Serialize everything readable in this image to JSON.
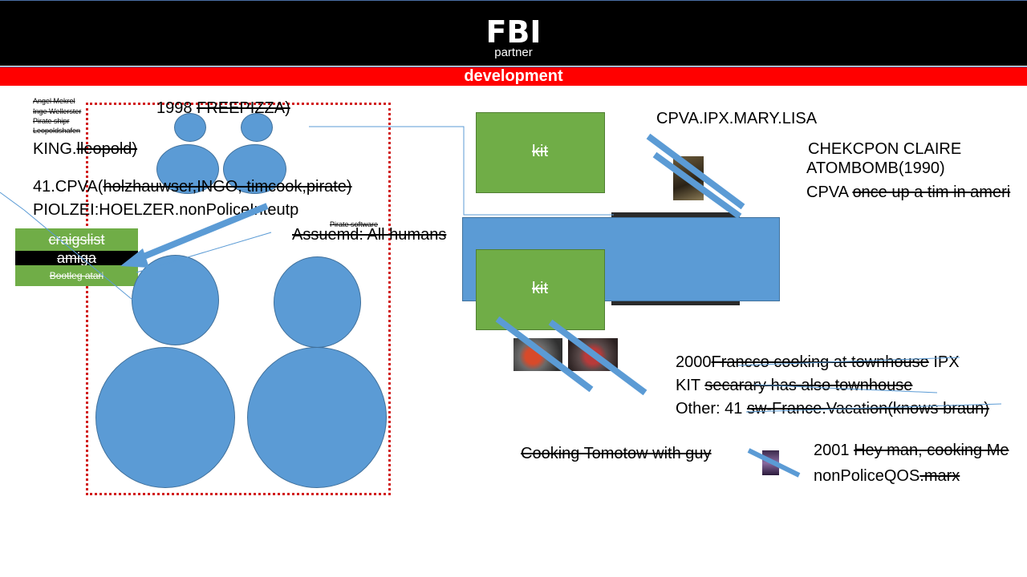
{
  "header": {
    "title": "FBI",
    "subtitle": "partner",
    "section": "development"
  },
  "left_notes": {
    "small_names": [
      "Angel Mekrel",
      "Inge Wellerster",
      "Pirate shipr",
      "Leopoldshafen"
    ],
    "king": "KING.",
    "king_struck": "lleopold)",
    "year_prefix": "1998",
    "year_struck": "FREEPIZZA)",
    "cpva_prefix": "41.CPVA(",
    "cpva_struck": "holzhauwser,INGO, timcook,pirate)",
    "piolzei": "PIOLZEI:HOELZER.nonPoliceInteutp",
    "pirate_software": "Pirate software",
    "assumed": "Assuemd: All humans"
  },
  "tags": [
    {
      "label": "craigslist",
      "bg": "#70ad47"
    },
    {
      "label": "amiga",
      "bg": "#000000"
    },
    {
      "label": "Bootleg atari",
      "bg": "#70ad47"
    }
  ],
  "kit_boxes": [
    "kit",
    "kit"
  ],
  "right_notes": {
    "cpva_ipx": "CPVA.IPX.MARY.LISA",
    "checkpoint": "CHEKCPON CLAIRE",
    "atombomb": "ATOMBOMB(1990)",
    "cpva_prefix": "CPVA",
    "cpva_struck": "once up a tim in ameri",
    "line1_prefix": "2000",
    "line1_struck": "Francco cooking at townhouse",
    "line1_suffix": "IPX",
    "line2_prefix": "KIT",
    "line2_struck": "secarary has also townhouse",
    "line3_prefix": "Other: 41",
    "line3_struck": "sw-France.Vacation(knows braun)",
    "cooking": "Cooking Tomotow with guy",
    "y2001_prefix": "2001",
    "y2001_struck": "Hey man, cooking Me",
    "nonpolice_prefix": "nonPoliceQOS",
    "nonpolice_struck": ".marx"
  },
  "colors": {
    "shape_blue": "#5b9bd5",
    "shape_green": "#70ad47",
    "header_red": "#ff0000",
    "header_black": "#000000",
    "frame_red": "#d11a1a"
  }
}
